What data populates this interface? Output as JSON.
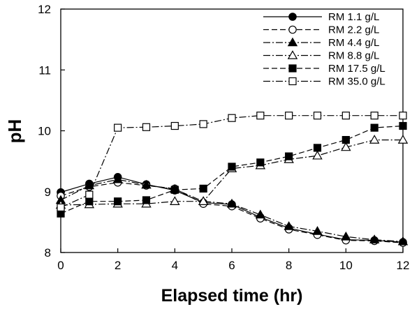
{
  "chart_data": {
    "type": "line",
    "xlabel": "Elapsed time (hr)",
    "ylabel": "pH",
    "xlim": [
      0,
      12
    ],
    "ylim": [
      8,
      12
    ],
    "xticks": [
      0,
      2,
      4,
      6,
      8,
      10,
      12
    ],
    "yticks": [
      8,
      9,
      10,
      11,
      12
    ],
    "grid": false,
    "legend_position": "top-right",
    "x": [
      0,
      1,
      2,
      3,
      4,
      5,
      6,
      7,
      8,
      9,
      10,
      11,
      12
    ],
    "series": [
      {
        "name": "RM 1.1 g/L",
        "marker": "circle-filled",
        "line_style": "solid",
        "values": [
          8.99,
          9.13,
          9.24,
          9.12,
          9.02,
          8.82,
          8.79,
          8.58,
          8.4,
          8.3,
          8.21,
          8.2,
          8.17
        ]
      },
      {
        "name": "RM 2.2 g/L",
        "marker": "circle-open",
        "line_style": "dashed",
        "values": [
          8.93,
          9.08,
          9.15,
          9.1,
          9.05,
          8.8,
          8.76,
          8.56,
          8.38,
          8.29,
          8.2,
          8.19,
          8.16
        ]
      },
      {
        "name": "RM 4.4 g/L",
        "marker": "triangle-filled",
        "line_style": "dashdot",
        "values": [
          8.86,
          9.1,
          9.2,
          9.11,
          9.04,
          8.84,
          8.8,
          8.62,
          8.43,
          8.35,
          8.26,
          8.21,
          8.18
        ]
      },
      {
        "name": "RM 8.8 g/L",
        "marker": "triangle-open",
        "line_style": "dashdot",
        "values": [
          8.78,
          8.79,
          8.8,
          8.8,
          8.84,
          8.84,
          9.38,
          9.43,
          9.53,
          9.59,
          9.73,
          9.85,
          9.85
        ]
      },
      {
        "name": "RM 17.5 g/L",
        "marker": "square-filled",
        "line_style": "dashed",
        "values": [
          8.64,
          8.84,
          8.84,
          8.86,
          9.03,
          9.05,
          9.41,
          9.48,
          9.58,
          9.72,
          9.85,
          10.05,
          10.08
        ]
      },
      {
        "name": "RM 35.0 g/L",
        "marker": "square-open",
        "line_style": "dashdot",
        "values": [
          8.74,
          8.95,
          10.05,
          10.06,
          10.08,
          10.11,
          10.21,
          10.25,
          10.25,
          10.25,
          10.25,
          10.25,
          10.25
        ]
      }
    ]
  }
}
